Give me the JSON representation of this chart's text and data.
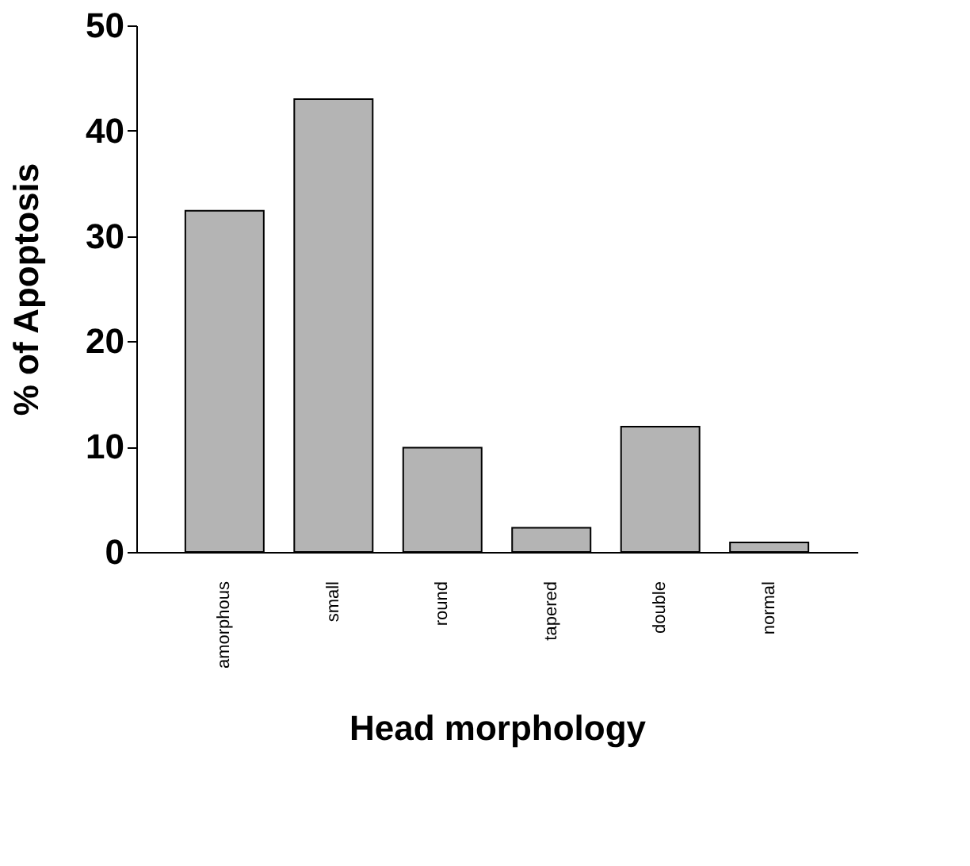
{
  "chart_data": {
    "type": "bar",
    "xlabel": "Head morphology",
    "ylabel": "% of Apoptosis",
    "categories": [
      "amorphous",
      "small",
      "round",
      "tapered",
      "double",
      "normal"
    ],
    "values": [
      32.4,
      43.0,
      9.9,
      2.3,
      11.9,
      0.9
    ],
    "color": "#b4b4b4",
    "ylim": [
      0,
      50
    ],
    "yticks": [
      0,
      10,
      20,
      30,
      40,
      50
    ],
    "grid": false
  }
}
